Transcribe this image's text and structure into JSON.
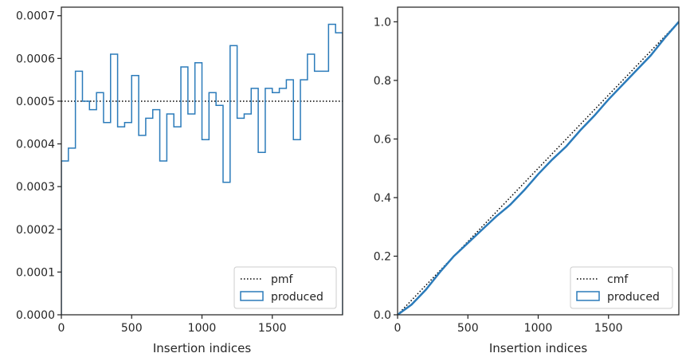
{
  "chart_data": [
    {
      "type": "step",
      "xlabel": "Insertion indices",
      "ylabel": "",
      "xlim": [
        0,
        2000
      ],
      "ylim": [
        0,
        0.00072
      ],
      "xticks": [
        0,
        500,
        1000,
        1500
      ],
      "xtick_labels": [
        "0",
        "500",
        "1000",
        "1500"
      ],
      "yticks": [
        0,
        0.0001,
        0.0002,
        0.0003,
        0.0004,
        0.0005,
        0.0006,
        0.0007
      ],
      "ytick_labels": [
        "0.0000",
        "0.0001",
        "0.0002",
        "0.0003",
        "0.0004",
        "0.0005",
        "0.0006",
        "0.0007"
      ],
      "grid": false,
      "legend_position": "bottom-right",
      "reference": {
        "name": "pmf",
        "value": 0.0005,
        "style": "dotted",
        "color": "#000000"
      },
      "series": [
        {
          "name": "produced",
          "color": "#2b7bba",
          "bin_edges": [
            0,
            50,
            100,
            150,
            200,
            250,
            300,
            350,
            400,
            450,
            500,
            550,
            600,
            650,
            700,
            750,
            800,
            850,
            900,
            950,
            1000,
            1050,
            1100,
            1150,
            1200,
            1250,
            1300,
            1350,
            1400,
            1450,
            1500,
            1550,
            1600,
            1650,
            1700,
            1750,
            1800,
            1850,
            1900,
            1950,
            2000
          ],
          "values": [
            0.00036,
            0.00039,
            0.00057,
            0.0005,
            0.00048,
            0.00052,
            0.00045,
            0.00061,
            0.00044,
            0.00045,
            0.00056,
            0.00042,
            0.00046,
            0.00048,
            0.00036,
            0.00047,
            0.00044,
            0.00058,
            0.00047,
            0.00059,
            0.00041,
            0.00052,
            0.00049,
            0.00031,
            0.00063,
            0.00046,
            0.00047,
            0.00053,
            0.00038,
            0.00053,
            0.00052,
            0.00053,
            0.00055,
            0.00041,
            0.00055,
            0.00061,
            0.00057,
            0.00057,
            0.00068,
            0.00066
          ]
        }
      ]
    },
    {
      "type": "line",
      "xlabel": "Insertion indices",
      "ylabel": "",
      "xlim": [
        0,
        2000
      ],
      "ylim": [
        0,
        1.05
      ],
      "xticks": [
        0,
        500,
        1000,
        1500
      ],
      "xtick_labels": [
        "0",
        "500",
        "1000",
        "1500"
      ],
      "yticks": [
        0,
        0.2,
        0.4,
        0.6,
        0.8,
        1.0
      ],
      "ytick_labels": [
        "0.0",
        "0.2",
        "0.4",
        "0.6",
        "0.8",
        "1.0"
      ],
      "grid": false,
      "legend_position": "bottom-right",
      "reference": {
        "name": "cmf",
        "x": [
          0,
          2000
        ],
        "y": [
          0,
          1.0
        ],
        "style": "dotted",
        "color": "#000000"
      },
      "series": [
        {
          "name": "produced",
          "color": "#2b7bba",
          "x": [
            0,
            100,
            200,
            300,
            400,
            500,
            600,
            700,
            800,
            900,
            1000,
            1100,
            1200,
            1300,
            1400,
            1500,
            1600,
            1700,
            1800,
            1900,
            2000
          ],
          "y": [
            0.0,
            0.035,
            0.085,
            0.145,
            0.2,
            0.245,
            0.29,
            0.335,
            0.375,
            0.425,
            0.48,
            0.53,
            0.575,
            0.63,
            0.68,
            0.735,
            0.785,
            0.835,
            0.885,
            0.945,
            1.0
          ]
        }
      ]
    }
  ]
}
